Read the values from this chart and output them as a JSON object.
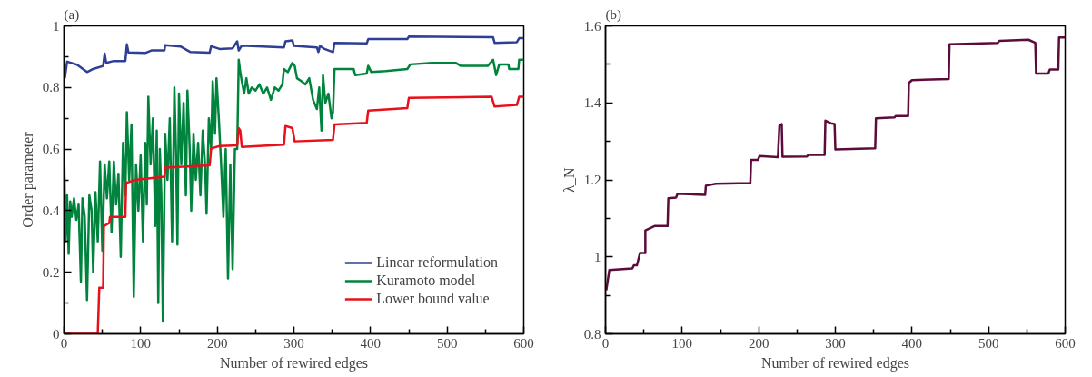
{
  "chart_data": [
    {
      "type": "line",
      "title": "(a)",
      "xlabel": "Number of rewired edges",
      "ylabel": "Order parameter",
      "xlim": [
        0,
        600
      ],
      "ylim": [
        0,
        1
      ],
      "xticks": [
        0,
        100,
        200,
        300,
        400,
        500,
        600
      ],
      "yticks": [
        0,
        0.2,
        0.4,
        0.6,
        0.8,
        1
      ],
      "legend": "bottom right",
      "series": [
        {
          "name": "Linear reformulation",
          "color": "#2e3f95",
          "x": [
            1,
            4,
            17,
            30,
            38,
            51,
            53,
            55,
            65,
            80,
            82,
            84,
            106,
            114,
            131,
            132,
            152,
            165,
            190,
            192,
            203,
            220,
            226,
            228,
            232,
            287,
            289,
            298,
            300,
            330,
            332,
            334,
            340,
            351,
            353,
            395,
            397,
            448,
            450,
            560,
            562,
            591,
            594,
            600
          ],
          "values": [
            0.83,
            0.884,
            0.874,
            0.85,
            0.86,
            0.87,
            0.91,
            0.88,
            0.886,
            0.886,
            0.94,
            0.914,
            0.912,
            0.92,
            0.92,
            0.937,
            0.933,
            0.915,
            0.913,
            0.934,
            0.925,
            0.927,
            0.95,
            0.92,
            0.936,
            0.93,
            0.95,
            0.953,
            0.935,
            0.93,
            0.915,
            0.935,
            0.925,
            0.915,
            0.945,
            0.943,
            0.957,
            0.957,
            0.965,
            0.963,
            0.945,
            0.947,
            0.96,
            0.96
          ]
        },
        {
          "name": "Kuramoto model",
          "color": "#00843d",
          "x": [
            0,
            2,
            4,
            6,
            8,
            10,
            13,
            16,
            19,
            22,
            24,
            27,
            30,
            33,
            36,
            38,
            41,
            44,
            47,
            50,
            53,
            56,
            59,
            62,
            65,
            68,
            71,
            74,
            77,
            80,
            82,
            85,
            88,
            91,
            94,
            97,
            100,
            103,
            106,
            108,
            110,
            113,
            116,
            119,
            121,
            123,
            125,
            127,
            129,
            132,
            135,
            138,
            141,
            144,
            146,
            148,
            150,
            153,
            156,
            159,
            161,
            164,
            166,
            169,
            172,
            175,
            178,
            181,
            184,
            186,
            189,
            192,
            194,
            197,
            199,
            202,
            205,
            208,
            211,
            214,
            217,
            220,
            223,
            226,
            228,
            230,
            232,
            235,
            238,
            241,
            245,
            250,
            255,
            260,
            265,
            270,
            275,
            280,
            285,
            287,
            292,
            298,
            301,
            304,
            310,
            315,
            320,
            325,
            330,
            333,
            336,
            338,
            341,
            345,
            349,
            351,
            353,
            378,
            380,
            395,
            397,
            401,
            420,
            448,
            452,
            480,
            511,
            518,
            553,
            560,
            564,
            568,
            580,
            581,
            593,
            594,
            600
          ],
          "values": [
            0.6,
            0.3,
            0.45,
            0.26,
            0.43,
            0.38,
            0.44,
            0.37,
            0.42,
            0.17,
            0.44,
            0.38,
            0.11,
            0.45,
            0.4,
            0.2,
            0.46,
            0.3,
            0.56,
            0.27,
            0.55,
            0.44,
            0.56,
            0.33,
            0.56,
            0.42,
            0.52,
            0.25,
            0.62,
            0.45,
            0.72,
            0.5,
            0.68,
            0.12,
            0.55,
            0.4,
            0.58,
            0.3,
            0.62,
            0.42,
            0.77,
            0.55,
            0.7,
            0.35,
            0.66,
            0.1,
            0.6,
            0.45,
            0.04,
            0.65,
            0.5,
            0.7,
            0.3,
            0.8,
            0.6,
            0.29,
            0.78,
            0.55,
            0.75,
            0.45,
            0.79,
            0.6,
            0.4,
            0.65,
            0.5,
            0.62,
            0.45,
            0.66,
            0.55,
            0.39,
            0.7,
            0.6,
            0.82,
            0.65,
            0.83,
            0.7,
            0.55,
            0.38,
            0.6,
            0.18,
            0.55,
            0.21,
            0.6,
            0.6,
            0.89,
            0.85,
            0.82,
            0.78,
            0.83,
            0.78,
            0.8,
            0.79,
            0.81,
            0.78,
            0.8,
            0.76,
            0.8,
            0.79,
            0.81,
            0.86,
            0.85,
            0.88,
            0.87,
            0.83,
            0.82,
            0.81,
            0.83,
            0.76,
            0.73,
            0.8,
            0.66,
            0.84,
            0.75,
            0.78,
            0.7,
            0.72,
            0.86,
            0.86,
            0.84,
            0.845,
            0.87,
            0.85,
            0.853,
            0.86,
            0.875,
            0.88,
            0.88,
            0.87,
            0.87,
            0.89,
            0.84,
            0.875,
            0.875,
            0.86,
            0.86,
            0.89,
            0.89
          ]
        },
        {
          "name": "Lower bound value",
          "color": "#e8101a",
          "x": [
            0,
            44,
            46,
            51,
            52,
            59,
            60,
            68,
            80,
            81,
            93,
            131,
            132,
            190,
            192,
            203,
            226,
            228,
            230,
            232,
            287,
            289,
            298,
            301,
            351,
            353,
            395,
            397,
            448,
            450,
            558,
            562,
            591,
            594,
            600
          ],
          "values": [
            0,
            0,
            0.15,
            0.15,
            0.35,
            0.36,
            0.38,
            0.38,
            0.38,
            0.49,
            0.5,
            0.51,
            0.54,
            0.547,
            0.602,
            0.61,
            0.612,
            0.668,
            0.66,
            0.607,
            0.614,
            0.675,
            0.668,
            0.625,
            0.63,
            0.68,
            0.685,
            0.725,
            0.733,
            0.766,
            0.77,
            0.738,
            0.743,
            0.77,
            0.77
          ]
        }
      ]
    },
    {
      "type": "line",
      "title": "(b)",
      "xlabel": "Number of rewired edges",
      "ylabel": "λ_N",
      "xlim": [
        0,
        600
      ],
      "ylim": [
        0.8,
        1.6
      ],
      "xticks": [
        0,
        100,
        200,
        300,
        400,
        500,
        600
      ],
      "yticks": [
        0.8,
        1,
        1.2,
        1.4,
        1.6
      ],
      "series": [
        {
          "color": "#5c0b3a",
          "x": [
            1,
            5,
            35,
            37,
            41,
            45,
            52,
            52,
            64,
            81,
            82,
            92,
            94,
            130,
            131,
            144,
            189,
            190,
            199,
            201,
            225,
            227,
            230,
            231,
            263,
            265,
            286,
            287,
            294,
            299,
            300,
            352,
            353,
            377,
            379,
            395,
            396,
            400,
            448,
            449,
            512,
            514,
            552,
            561,
            562,
            578,
            580,
            591,
            592,
            600
          ],
          "values": [
            0.913,
            0.966,
            0.97,
            0.978,
            0.978,
            1.01,
            1.01,
            1.069,
            1.08,
            1.08,
            1.152,
            1.154,
            1.164,
            1.161,
            1.185,
            1.19,
            1.192,
            1.252,
            1.252,
            1.262,
            1.259,
            1.341,
            1.345,
            1.26,
            1.261,
            1.265,
            1.265,
            1.354,
            1.347,
            1.345,
            1.279,
            1.282,
            1.36,
            1.362,
            1.366,
            1.366,
            1.452,
            1.459,
            1.462,
            1.552,
            1.556,
            1.561,
            1.564,
            1.556,
            1.476,
            1.476,
            1.487,
            1.487,
            1.57,
            1.57
          ]
        }
      ]
    }
  ]
}
